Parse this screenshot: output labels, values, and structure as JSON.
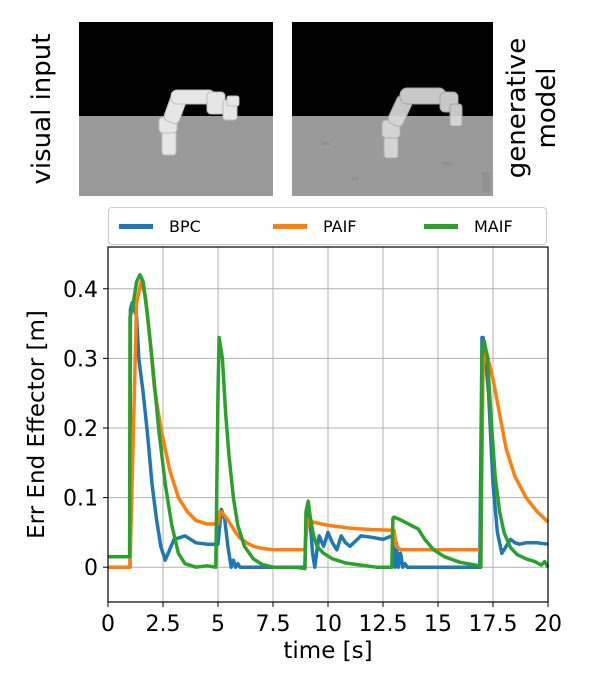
{
  "panels": {
    "left_caption": "visual input",
    "right_caption_lines": [
      "generative",
      "model"
    ]
  },
  "chart_data": {
    "type": "line",
    "title": "",
    "xlabel": "time [s]",
    "ylabel": "Err End Effector [m]",
    "xlim": [
      0,
      20
    ],
    "ylim": [
      -0.05,
      0.46
    ],
    "xticks": [
      "0",
      "2.5",
      "5",
      "7.5",
      "10",
      "12.5",
      "15",
      "17.5",
      "20"
    ],
    "yticks": [
      "0",
      "0.1",
      "0.2",
      "0.3",
      "0.4"
    ],
    "grid": true,
    "legend_position": "top",
    "series": [
      {
        "name": "BPC",
        "color": "#1f77b4",
        "x": [
          0,
          1.0,
          1.02,
          1.1,
          1.3,
          1.4,
          1.6,
          1.8,
          2.0,
          2.2,
          2.4,
          2.6,
          2.8,
          3.0,
          3.5,
          4.0,
          4.5,
          5.0,
          5.05,
          5.15,
          5.3,
          5.45,
          5.6,
          5.7,
          5.8,
          5.9,
          6.0,
          6.2,
          7.0,
          8.0,
          8.95,
          9.0,
          9.1,
          9.2,
          9.3,
          9.4,
          9.5,
          9.6,
          9.8,
          10.0,
          10.2,
          10.4,
          10.6,
          10.8,
          11.0,
          11.5,
          12.0,
          12.5,
          12.9,
          13.0,
          13.05,
          13.1,
          13.2,
          13.3,
          13.4,
          13.5,
          13.6,
          13.8,
          14.0,
          14.5,
          15.0,
          16.0,
          16.9,
          17.0,
          17.05,
          17.1,
          17.3,
          17.5,
          17.7,
          17.9,
          18.1,
          18.3,
          18.5,
          18.7,
          19.0,
          19.5,
          20.0
        ],
        "y": [
          0,
          0,
          0.37,
          0.38,
          0.36,
          0.3,
          0.25,
          0.19,
          0.12,
          0.07,
          0.03,
          0.01,
          0.025,
          0.04,
          0.045,
          0.035,
          0.033,
          0.033,
          0.05,
          0.083,
          0.07,
          0.03,
          0.0,
          0.01,
          0.0,
          0.005,
          0.0,
          0.0,
          0.0,
          0.0,
          0.0,
          0.06,
          0.085,
          0.06,
          0.02,
          0.0,
          0.025,
          0.045,
          0.03,
          0.05,
          0.035,
          0.025,
          0.045,
          0.035,
          0.03,
          0.045,
          0.043,
          0.04,
          0.045,
          0.035,
          0.0,
          0.035,
          0.0,
          0.02,
          0.0,
          0.005,
          0.0,
          0.0,
          0.0,
          0.0,
          0.0,
          0.0,
          0.0,
          0.33,
          0.33,
          0.32,
          0.25,
          0.12,
          0.05,
          0.02,
          0.03,
          0.04,
          0.035,
          0.033,
          0.035,
          0.035,
          0.033
        ]
      },
      {
        "name": "PAIF",
        "color": "#ff7f0e",
        "x": [
          0,
          1.0,
          1.3,
          1.5,
          1.7,
          1.9,
          2.1,
          2.4,
          2.8,
          3.2,
          3.6,
          4.0,
          4.5,
          5.0,
          5.1,
          5.2,
          5.4,
          5.6,
          5.8,
          6.0,
          6.3,
          6.6,
          7.0,
          7.5,
          8.0,
          8.5,
          8.95,
          9.05,
          9.15,
          9.3,
          10.0,
          11.0,
          12.0,
          13.0,
          13.1,
          13.3,
          14.0,
          15.0,
          16.0,
          16.95,
          17.05,
          17.2,
          17.5,
          17.8,
          18.1,
          18.5,
          19.0,
          19.5,
          20.0
        ],
        "y": [
          0.0,
          0.0,
          0.38,
          0.41,
          0.39,
          0.33,
          0.26,
          0.2,
          0.14,
          0.1,
          0.08,
          0.067,
          0.062,
          0.062,
          0.08,
          0.078,
          0.07,
          0.06,
          0.05,
          0.042,
          0.035,
          0.03,
          0.027,
          0.025,
          0.025,
          0.025,
          0.025,
          0.06,
          0.07,
          0.065,
          0.06,
          0.056,
          0.054,
          0.053,
          0.03,
          0.025,
          0.025,
          0.025,
          0.025,
          0.025,
          0.29,
          0.31,
          0.27,
          0.22,
          0.17,
          0.13,
          0.1,
          0.08,
          0.065
        ]
      },
      {
        "name": "MAIF",
        "color": "#2ca02c",
        "x": [
          0,
          0.98,
          1.0,
          1.1,
          1.3,
          1.45,
          1.6,
          1.8,
          2.0,
          2.3,
          2.6,
          2.9,
          3.2,
          3.5,
          4.0,
          4.5,
          4.9,
          5.0,
          5.05,
          5.2,
          5.35,
          5.5,
          5.7,
          5.9,
          6.2,
          6.6,
          7.0,
          7.5,
          8.0,
          8.5,
          8.95,
          9.0,
          9.1,
          9.2,
          9.35,
          9.5,
          9.8,
          10.2,
          10.8,
          11.5,
          12.2,
          12.9,
          12.95,
          13.0,
          13.3,
          13.6,
          13.9,
          14.1,
          14.4,
          14.8,
          15.3,
          16.0,
          16.9,
          16.95,
          17.0,
          17.1,
          17.25,
          17.4,
          17.6,
          17.8,
          18.0,
          18.3,
          18.6,
          19.0,
          19.4,
          19.7,
          19.85,
          20.0
        ],
        "y": [
          0.015,
          0.015,
          0.36,
          0.37,
          0.41,
          0.42,
          0.41,
          0.36,
          0.3,
          0.2,
          0.12,
          0.06,
          0.02,
          0.005,
          0.0,
          0.002,
          0.0,
          0.25,
          0.33,
          0.3,
          0.22,
          0.16,
          0.1,
          0.06,
          0.03,
          0.012,
          0.004,
          0.0,
          0.0,
          0.0,
          -0.002,
          0.08,
          0.095,
          0.07,
          0.045,
          0.03,
          0.02,
          0.012,
          0.006,
          0.003,
          0.0,
          0.0,
          0.07,
          0.072,
          0.068,
          0.063,
          0.058,
          0.055,
          0.04,
          0.025,
          0.015,
          0.007,
          0.002,
          0.0,
          0.31,
          0.325,
          0.3,
          0.22,
          0.13,
          0.08,
          0.05,
          0.028,
          0.018,
          0.012,
          0.008,
          0.003,
          0.008,
          0.0
        ]
      }
    ]
  }
}
